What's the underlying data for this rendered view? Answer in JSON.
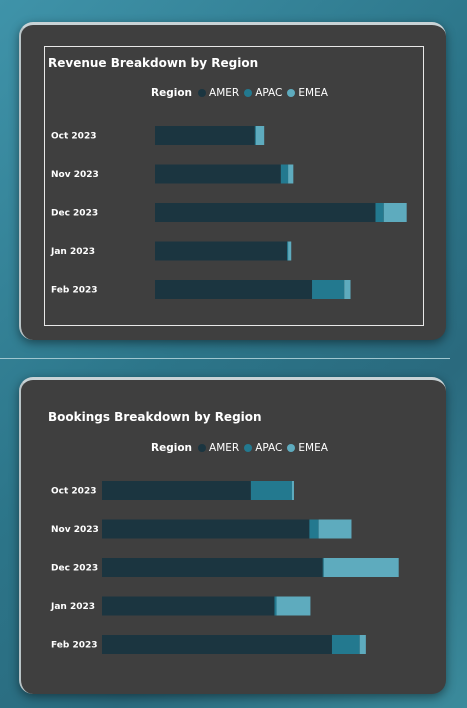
{
  "colors": {
    "AMER": "#1b3540",
    "APAC": "#23798f",
    "EMEA": "#5eabbe"
  },
  "chart_data": [
    {
      "type": "bar",
      "orientation": "horizontal",
      "stacked": true,
      "title": "Revenue Breakdown by Region",
      "legend_title": "Region",
      "legend_position": "top-center",
      "categories": [
        "Oct 2023",
        "Nov 2023",
        "Dec 2023",
        "Jan 2023",
        "Feb 2023"
      ],
      "series": [
        {
          "name": "AMER",
          "values": [
            96,
            121,
            212,
            127,
            151
          ]
        },
        {
          "name": "APAC",
          "values": [
            1,
            7,
            8,
            1,
            31
          ]
        },
        {
          "name": "EMEA",
          "values": [
            8,
            5,
            22,
            3,
            6
          ]
        }
      ],
      "xlim": [
        0,
        250
      ],
      "grid": false
    },
    {
      "type": "bar",
      "orientation": "horizontal",
      "stacked": true,
      "title": "Bookings Breakdown by Region",
      "legend_title": "Region",
      "legend_position": "top-center",
      "categories": [
        "Oct 2023",
        "Nov 2023",
        "Dec 2023",
        "Jan 2023",
        "Feb 2023"
      ],
      "series": [
        {
          "name": "AMER",
          "values": [
            145,
            202,
            215,
            168,
            224
          ]
        },
        {
          "name": "APAC",
          "values": [
            40,
            9,
            1,
            2,
            27
          ]
        },
        {
          "name": "EMEA",
          "values": [
            2,
            32,
            73,
            33,
            6
          ]
        }
      ],
      "xlim": [
        0,
        300
      ],
      "grid": false
    }
  ]
}
